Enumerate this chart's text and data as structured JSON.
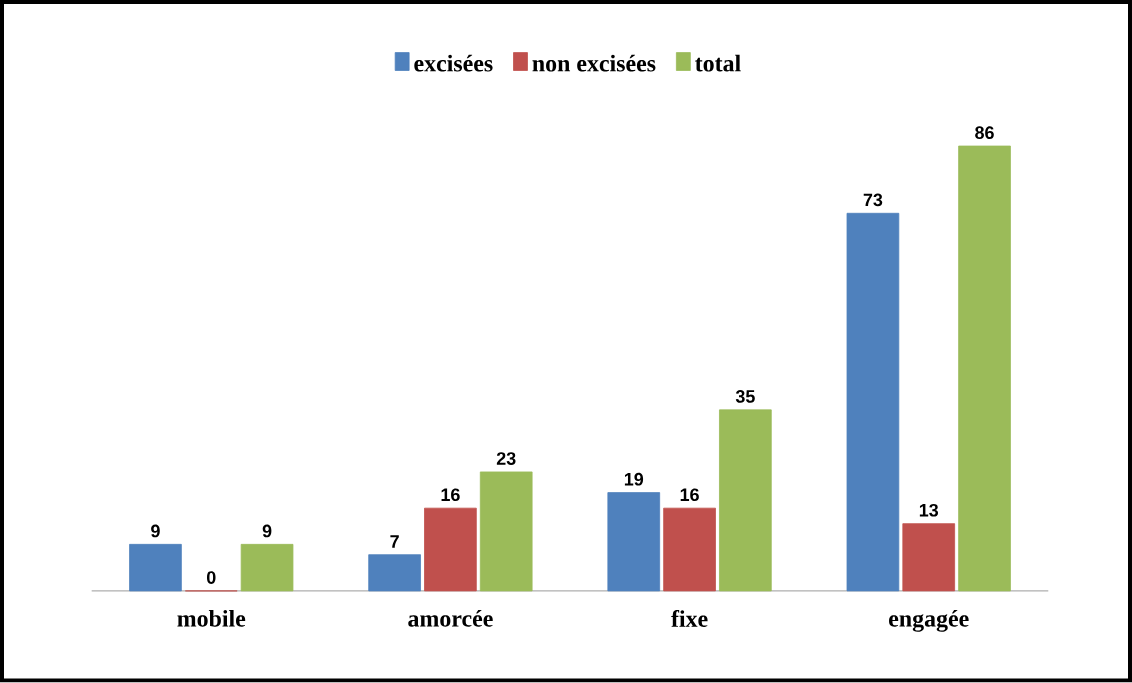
{
  "chart_data": {
    "type": "bar",
    "categories": [
      "mobile",
      "amorcée",
      "fixe",
      "engagée"
    ],
    "series": [
      {
        "name": "excisées",
        "color": "#4f81bd",
        "values": [
          9,
          7,
          19,
          73
        ]
      },
      {
        "name": "non excisées",
        "color": "#c0504d",
        "values": [
          0,
          16,
          16,
          13
        ]
      },
      {
        "name": "total",
        "color": "#9bbb59",
        "values": [
          9,
          23,
          35,
          86
        ]
      }
    ],
    "data_labels": true,
    "legend": "top"
  }
}
